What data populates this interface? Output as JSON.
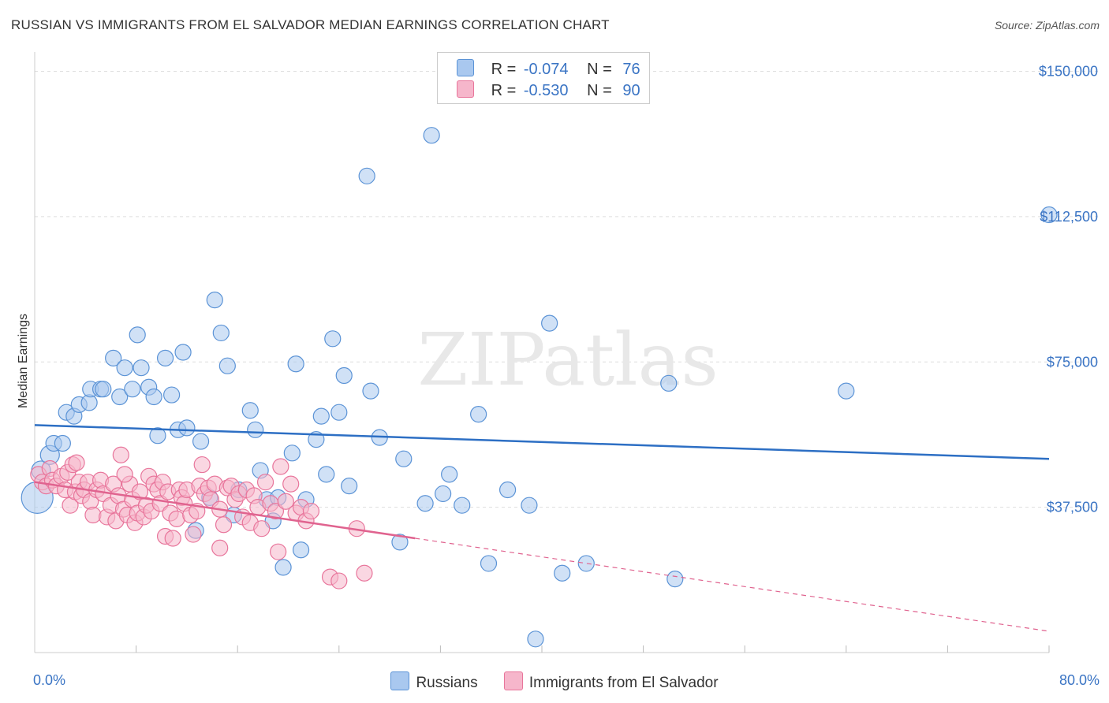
{
  "header": {
    "title": "RUSSIAN VS IMMIGRANTS FROM EL SALVADOR MEDIAN EARNINGS CORRELATION CHART",
    "source": "Source: ZipAtlas.com"
  },
  "legend": {
    "rows": [
      {
        "r_label": "R =",
        "r_value": "-0.074",
        "n_label": "N =",
        "n_value": "76"
      },
      {
        "r_label": "R =",
        "r_value": "-0.530",
        "n_label": "N =",
        "n_value": "90"
      }
    ]
  },
  "colors": {
    "russians_fill": "#a9c8ef",
    "russians_stroke": "#5b93d6",
    "russians_line": "#2d6fc4",
    "salvador_fill": "#f6b6cb",
    "salvador_stroke": "#e8759b",
    "salvador_line": "#e0638f",
    "tick_text": "#3a74c4",
    "grid": "#dddddd"
  },
  "chart_data": {
    "type": "scatter",
    "title": "RUSSIAN VS IMMIGRANTS FROM EL SALVADOR MEDIAN EARNINGS CORRELATION CHART",
    "xlabel": "",
    "ylabel": "Median Earnings",
    "xlim": [
      0,
      80
    ],
    "ylim": [
      0,
      155000
    ],
    "x_tick_labels": [
      "0.0%",
      "80.0%"
    ],
    "y_ticks": [
      37500,
      75000,
      112500,
      150000
    ],
    "y_tick_labels": [
      "$37,500",
      "$75,000",
      "$112,500",
      "$150,000"
    ],
    "watermark": "ZIPatlas",
    "series": [
      {
        "name": "Russians",
        "r": -0.074,
        "n": 76,
        "trend": {
          "x0": 0,
          "y0": 58700,
          "x1": 80,
          "y1": 50000
        },
        "points": [
          [
            0.2,
            40000,
            20
          ],
          [
            0.5,
            47000,
            12
          ],
          [
            1.2,
            51000,
            12
          ],
          [
            1.5,
            54000,
            10
          ],
          [
            2.2,
            54000,
            10
          ],
          [
            2.5,
            62000,
            10
          ],
          [
            3.1,
            61000,
            10
          ],
          [
            3.5,
            64000,
            10
          ],
          [
            4.3,
            64500,
            10
          ],
          [
            4.4,
            68000,
            10
          ],
          [
            5.2,
            68000,
            10
          ],
          [
            5.4,
            68000,
            10
          ],
          [
            6.2,
            76000,
            10
          ],
          [
            6.7,
            66000,
            10
          ],
          [
            7.1,
            73500,
            10
          ],
          [
            7.7,
            68000,
            10
          ],
          [
            8.1,
            82000,
            10
          ],
          [
            8.4,
            73500,
            10
          ],
          [
            9.0,
            68500,
            10
          ],
          [
            9.4,
            66000,
            10
          ],
          [
            9.7,
            56000,
            10
          ],
          [
            10.3,
            76000,
            10
          ],
          [
            10.8,
            66500,
            10
          ],
          [
            11.3,
            57500,
            10
          ],
          [
            11.7,
            77500,
            10
          ],
          [
            12.0,
            58000,
            10
          ],
          [
            12.7,
            31500,
            10
          ],
          [
            13.1,
            54500,
            10
          ],
          [
            13.8,
            40000,
            10
          ],
          [
            14.2,
            91000,
            10
          ],
          [
            14.7,
            82500,
            10
          ],
          [
            15.2,
            74000,
            10
          ],
          [
            15.7,
            35500,
            10
          ],
          [
            16.1,
            42000,
            10
          ],
          [
            17.0,
            62500,
            10
          ],
          [
            17.4,
            57500,
            10
          ],
          [
            17.8,
            47000,
            10
          ],
          [
            18.3,
            39500,
            10
          ],
          [
            18.8,
            34000,
            10
          ],
          [
            19.2,
            40000,
            10
          ],
          [
            19.6,
            22000,
            10
          ],
          [
            20.3,
            51500,
            10
          ],
          [
            20.6,
            74500,
            10
          ],
          [
            21.0,
            26500,
            10
          ],
          [
            21.4,
            39500,
            10
          ],
          [
            22.2,
            55000,
            10
          ],
          [
            22.6,
            61000,
            10
          ],
          [
            23.0,
            46000,
            10
          ],
          [
            23.5,
            81000,
            10
          ],
          [
            24.0,
            62000,
            10
          ],
          [
            24.4,
            71500,
            10
          ],
          [
            24.8,
            43000,
            10
          ],
          [
            26.2,
            123000,
            10
          ],
          [
            26.5,
            67500,
            10
          ],
          [
            27.2,
            55500,
            10
          ],
          [
            28.8,
            28500,
            10
          ],
          [
            29.1,
            50000,
            10
          ],
          [
            30.8,
            38500,
            10
          ],
          [
            31.3,
            133500,
            10
          ],
          [
            32.2,
            41000,
            10
          ],
          [
            32.7,
            46000,
            10
          ],
          [
            33.7,
            38000,
            10
          ],
          [
            35.0,
            61500,
            10
          ],
          [
            35.8,
            23000,
            10
          ],
          [
            37.3,
            42000,
            10
          ],
          [
            39.0,
            38000,
            10
          ],
          [
            39.5,
            3500,
            10
          ],
          [
            40.6,
            85000,
            10
          ],
          [
            41.6,
            20500,
            10
          ],
          [
            43.5,
            23000,
            10
          ],
          [
            50.0,
            69500,
            10
          ],
          [
            50.5,
            19000,
            10
          ],
          [
            64.0,
            67500,
            10
          ],
          [
            80.0,
            113000,
            10
          ]
        ]
      },
      {
        "name": "Immigrants from El Salvador",
        "r": -0.53,
        "n": 90,
        "trend": {
          "x0": 0,
          "y0": 44000,
          "x1": 30,
          "y1": 29500
        },
        "trend_extension": {
          "x0": 30,
          "y0": 29500,
          "x1": 80,
          "y1": 5500
        },
        "points": [
          [
            0.3,
            46000,
            10
          ],
          [
            0.6,
            44000,
            10
          ],
          [
            0.9,
            43000,
            10
          ],
          [
            1.2,
            47500,
            10
          ],
          [
            1.4,
            44500,
            10
          ],
          [
            1.7,
            43000,
            10
          ],
          [
            2.1,
            45500,
            10
          ],
          [
            2.4,
            42000,
            10
          ],
          [
            2.6,
            46500,
            10
          ],
          [
            2.8,
            38000,
            10
          ],
          [
            3.0,
            48500,
            10
          ],
          [
            3.2,
            41500,
            10
          ],
          [
            3.5,
            44000,
            10
          ],
          [
            3.7,
            40500,
            10
          ],
          [
            3.9,
            42000,
            10
          ],
          [
            4.2,
            44000,
            10
          ],
          [
            4.4,
            39000,
            10
          ],
          [
            4.6,
            35500,
            10
          ],
          [
            4.9,
            42000,
            10
          ],
          [
            5.2,
            44500,
            10
          ],
          [
            5.4,
            41000,
            10
          ],
          [
            5.7,
            35000,
            10
          ],
          [
            6.0,
            38000,
            10
          ],
          [
            6.2,
            43500,
            10
          ],
          [
            6.4,
            34000,
            10
          ],
          [
            6.6,
            40500,
            10
          ],
          [
            6.8,
            51000,
            10
          ],
          [
            7.0,
            37000,
            10
          ],
          [
            7.3,
            35500,
            10
          ],
          [
            7.5,
            43500,
            10
          ],
          [
            7.7,
            39500,
            10
          ],
          [
            7.9,
            33500,
            10
          ],
          [
            8.1,
            36000,
            10
          ],
          [
            8.3,
            41500,
            10
          ],
          [
            8.6,
            35000,
            10
          ],
          [
            8.8,
            38000,
            10
          ],
          [
            9.0,
            45500,
            10
          ],
          [
            9.2,
            36500,
            10
          ],
          [
            9.4,
            43500,
            10
          ],
          [
            9.7,
            42000,
            10
          ],
          [
            9.9,
            38500,
            10
          ],
          [
            10.1,
            44000,
            10
          ],
          [
            10.3,
            30000,
            10
          ],
          [
            10.5,
            41500,
            10
          ],
          [
            10.7,
            36000,
            10
          ],
          [
            10.9,
            29500,
            10
          ],
          [
            11.2,
            34500,
            10
          ],
          [
            11.4,
            42000,
            10
          ],
          [
            11.6,
            40000,
            10
          ],
          [
            11.8,
            38500,
            10
          ],
          [
            12.0,
            42000,
            10
          ],
          [
            12.3,
            35500,
            10
          ],
          [
            12.5,
            30500,
            10
          ],
          [
            12.8,
            36500,
            10
          ],
          [
            13.0,
            43000,
            10
          ],
          [
            13.2,
            48500,
            10
          ],
          [
            13.4,
            41000,
            10
          ],
          [
            13.7,
            42500,
            10
          ],
          [
            13.9,
            39500,
            10
          ],
          [
            14.2,
            43500,
            10
          ],
          [
            14.6,
            37000,
            10
          ],
          [
            14.9,
            33000,
            10
          ],
          [
            15.2,
            42500,
            10
          ],
          [
            15.5,
            43000,
            10
          ],
          [
            15.8,
            39500,
            10
          ],
          [
            16.1,
            41000,
            10
          ],
          [
            16.4,
            35000,
            10
          ],
          [
            16.7,
            42000,
            10
          ],
          [
            17.0,
            33500,
            10
          ],
          [
            17.3,
            40500,
            10
          ],
          [
            17.6,
            37500,
            10
          ],
          [
            17.9,
            32000,
            10
          ],
          [
            18.2,
            44000,
            10
          ],
          [
            18.6,
            38500,
            10
          ],
          [
            19.0,
            36500,
            10
          ],
          [
            19.4,
            48000,
            10
          ],
          [
            19.8,
            39000,
            10
          ],
          [
            20.2,
            43500,
            10
          ],
          [
            20.6,
            36000,
            10
          ],
          [
            21.0,
            37500,
            10
          ],
          [
            21.4,
            34000,
            10
          ],
          [
            21.8,
            36500,
            10
          ],
          [
            23.3,
            19500,
            10
          ],
          [
            24.0,
            18500,
            10
          ],
          [
            25.4,
            32000,
            10
          ],
          [
            26.0,
            20500,
            10
          ],
          [
            19.2,
            26000,
            10
          ],
          [
            14.6,
            27000,
            10
          ],
          [
            7.1,
            46000,
            10
          ],
          [
            3.3,
            49000,
            10
          ]
        ]
      }
    ]
  },
  "bottom_legend": {
    "items": [
      {
        "label": "Russians"
      },
      {
        "label": "Immigrants from El Salvador"
      }
    ]
  }
}
